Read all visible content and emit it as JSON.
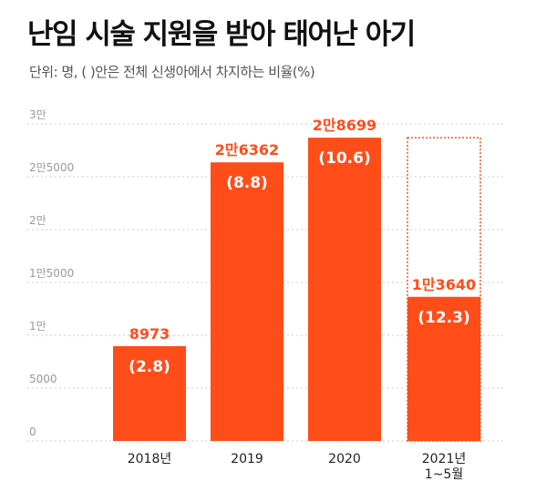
{
  "title": "난임 시술 지원을 받아 태어난 아기",
  "subtitle": "단위: 명, ( )안은 전체 신생아에서 차지하는 비율(%)",
  "colors": {
    "bar": "#FF4D1A",
    "value_label": "#FF4D1A",
    "grid": "#cccccc",
    "projection_outline": "#FF4D1A"
  },
  "chart_data": {
    "type": "bar",
    "title": "난임 시술 지원을 받아 태어난 아기",
    "subtitle": "단위: 명, ( )안은 전체 신생아에서 차지하는 비율(%)",
    "xlabel": "",
    "ylabel": "",
    "ylim": [
      0,
      30000
    ],
    "yticks": [
      0,
      5000,
      10000,
      15000,
      20000,
      25000,
      30000
    ],
    "ytick_labels": [
      "0",
      "5000",
      "1만",
      "1만5000",
      "2만",
      "2만5000",
      "3만"
    ],
    "grid": true,
    "categories": [
      "2018년",
      "2019",
      "2020",
      "2021년\n1~5월"
    ],
    "values": [
      8973,
      26362,
      28699,
      13640
    ],
    "value_labels": [
      "8973",
      "2만6362",
      "2만8699",
      "1만3640"
    ],
    "percent_labels": [
      "(2.8)",
      "(8.8)",
      "(10.6)",
      "(12.3)"
    ],
    "percent_values": [
      2.8,
      8.8,
      10.6,
      12.3
    ],
    "projection": {
      "category_index": 3,
      "value": 28699,
      "style": "dotted-outline"
    }
  }
}
